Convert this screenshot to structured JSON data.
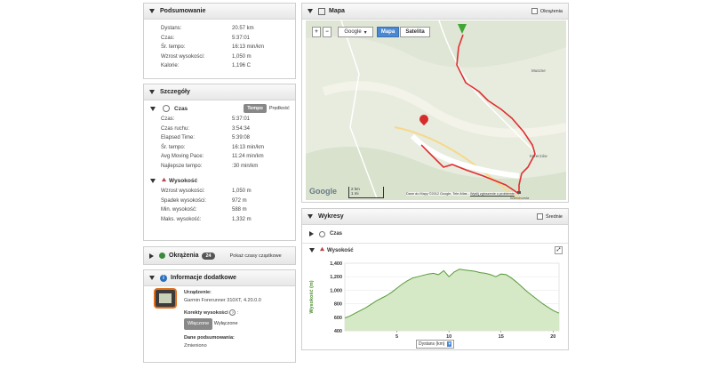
{
  "summary": {
    "title": "Podsumowanie",
    "rows": [
      {
        "label": "Dystans:",
        "value": "20.57 km"
      },
      {
        "label": "Czas:",
        "value": "5:37:01"
      },
      {
        "label": "Śr. tempo:",
        "value": "16:13 min/km"
      },
      {
        "label": "Wzrost wysokości:",
        "value": "1,050 m"
      },
      {
        "label": "Kalorie:",
        "value": "1,196 C"
      }
    ]
  },
  "details": {
    "title": "Szczegóły",
    "time": {
      "label": "Czas",
      "tempo_btn": "Tempo",
      "speed_btn": "Prędkość",
      "rows": [
        {
          "label": "Czas:",
          "value": "5:37:01"
        },
        {
          "label": "Czas ruchu:",
          "value": "3:54:34"
        },
        {
          "label": "Elapsed Time:",
          "value": "5:39:08"
        },
        {
          "label": "Śr. tempo:",
          "value": "16:13 min/km"
        },
        {
          "label": "Avg Moving Pace:",
          "value": "11:24 min/km"
        },
        {
          "label": "Najlepsze tempo:",
          "value": ":30 min/km"
        }
      ]
    },
    "elevation": {
      "label": "Wysokość",
      "rows": [
        {
          "label": "Wzrost wysokości:",
          "value": "1,050 m"
        },
        {
          "label": "Spadek wysokości:",
          "value": "972 m"
        },
        {
          "label": "Min. wysokość:",
          "value": "588 m"
        },
        {
          "label": "Maks. wysokość:",
          "value": "1,332 m"
        }
      ]
    }
  },
  "laps": {
    "title": "Okrążenia",
    "count": "24",
    "link": "Pokaż czasy cząstkowe"
  },
  "info": {
    "title": "Informacje dodatkowe",
    "device_label": "Urządzenie:",
    "device_value": "Garmin Forerunner 310XT, 4.20.0.0",
    "elev_corr_label": "Korekty wysokości",
    "elev_on": "Włączone",
    "elev_off": "Wyłączone",
    "summary_data_label": "Dane podsumowania:",
    "summary_data_value": "Zmieniono"
  },
  "map": {
    "title": "Mapa",
    "laps_checkbox": "Okrążenia",
    "zoom_in": "+",
    "zoom_out": "−",
    "provider": "Google",
    "type_map": "Mapa",
    "type_sat": "Satelita",
    "scale_km": "2 km",
    "scale_mi": "1 mi",
    "google": "Google",
    "attribution": "Dane do Mapy ©2012 Google, Tele Atlas - ",
    "report": "Wyślij zgłoszenie o problemie",
    "towns": [
      "Muszne",
      "Krzeczów",
      "Wierchomla"
    ]
  },
  "charts_panel": {
    "title": "Wykresy",
    "averages": "Średnie",
    "time_section": "Czas",
    "elev_section": "Wysokość",
    "dropdown": "Dystans (km)"
  },
  "chart_data": {
    "type": "area",
    "ylabel": "Wysokość (m)",
    "xlabel": "Dystans (km)",
    "xlim": [
      0,
      20.57
    ],
    "ylim": [
      400,
      1400
    ],
    "yticks": [
      400,
      600,
      800,
      1000,
      1200,
      1400
    ],
    "xticks": [
      5,
      10,
      15,
      20
    ],
    "ytick_labels": [
      "400",
      "600",
      "800",
      "1,000",
      "1,200",
      "1,400"
    ],
    "x": [
      0,
      0.5,
      1,
      1.5,
      2,
      2.5,
      3,
      3.5,
      4,
      4.5,
      5,
      5.5,
      6,
      6.5,
      7,
      7.5,
      8,
      8.5,
      9,
      9.5,
      10,
      10.5,
      11,
      11.5,
      12,
      12.5,
      13,
      13.5,
      14,
      14.5,
      15,
      15.5,
      16,
      16.5,
      17,
      17.5,
      18,
      18.5,
      19,
      19.5,
      20,
      20.57
    ],
    "y": [
      590,
      620,
      660,
      700,
      740,
      790,
      840,
      880,
      920,
      970,
      1030,
      1090,
      1140,
      1180,
      1200,
      1220,
      1240,
      1250,
      1230,
      1290,
      1200,
      1270,
      1310,
      1300,
      1290,
      1280,
      1260,
      1250,
      1230,
      1200,
      1240,
      1230,
      1180,
      1120,
      1050,
      980,
      920,
      860,
      800,
      750,
      700,
      660
    ],
    "color": "#5a9a3c",
    "fill": "#d6e9c6"
  }
}
